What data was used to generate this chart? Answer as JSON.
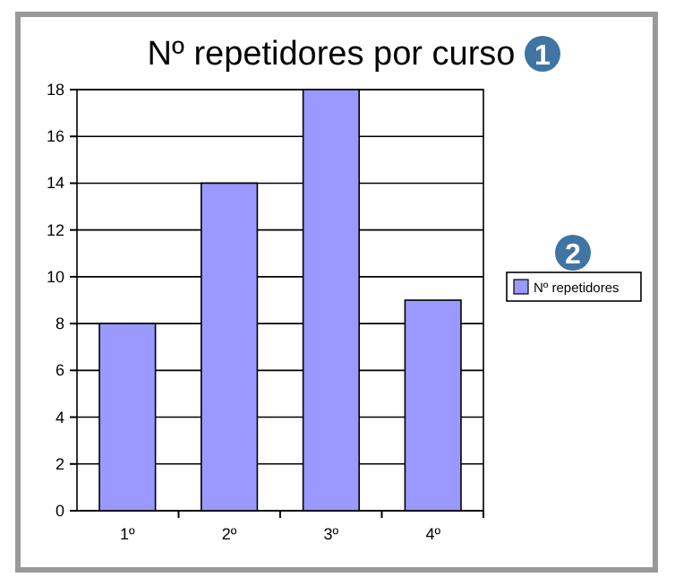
{
  "chart_data": {
    "type": "bar",
    "title": "Nº repetidores por curso",
    "categories": [
      "1º",
      "2º",
      "3º",
      "4º"
    ],
    "series": [
      {
        "name": "Nº repetidores",
        "color": "#9999ff",
        "values": [
          8,
          14,
          18,
          9
        ]
      }
    ],
    "ylim": [
      0,
      18
    ],
    "yticks": [
      0,
      2,
      4,
      6,
      8,
      10,
      12,
      14,
      16,
      18
    ],
    "grid": "y",
    "legend": "right",
    "annotations": [
      "1",
      "2"
    ]
  }
}
